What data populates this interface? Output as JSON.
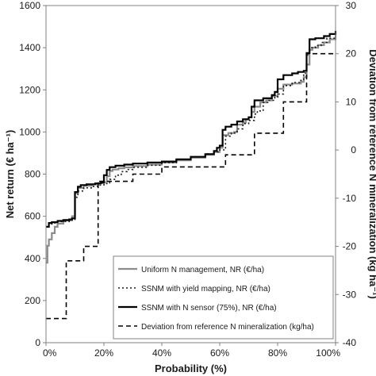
{
  "chart_data": {
    "type": "line",
    "xlabel": "Probability (%)",
    "ylabel": "Net return (€ ha⁻¹)",
    "y2label": "Deviation from reference N mineralization (kg ha⁻¹)",
    "xlim": [
      0,
      100
    ],
    "ylim": [
      0,
      1600
    ],
    "y2lim": [
      -40,
      30
    ],
    "x_ticks": [
      "0%",
      "20%",
      "40%",
      "60%",
      "80%",
      "100%"
    ],
    "y_ticks": [
      "0",
      "200",
      "400",
      "600",
      "800",
      "1000",
      "1200",
      "1400",
      "1600"
    ],
    "y2_ticks": [
      "-40",
      "-30",
      "-20",
      "-10",
      "0",
      "10",
      "20",
      "30"
    ],
    "grid": false,
    "legend_position": "bottom-right",
    "series": [
      {
        "name": "Uniform N management,   NR  (€/ha)",
        "color": "#8c8c8c",
        "dash": "",
        "axis": "left",
        "points": [
          [
            0,
            380
          ],
          [
            0.5,
            460
          ],
          [
            1,
            490
          ],
          [
            2,
            520
          ],
          [
            3,
            550
          ],
          [
            4,
            565
          ],
          [
            6,
            580
          ],
          [
            9,
            600
          ],
          [
            10,
            710
          ],
          [
            11,
            735
          ],
          [
            13,
            745
          ],
          [
            16,
            752
          ],
          [
            18,
            758
          ],
          [
            20,
            762
          ],
          [
            21,
            790
          ],
          [
            22,
            815
          ],
          [
            23,
            822
          ],
          [
            25,
            828
          ],
          [
            27,
            832
          ],
          [
            30,
            838
          ],
          [
            35,
            845
          ],
          [
            40,
            855
          ],
          [
            45,
            865
          ],
          [
            50,
            878
          ],
          [
            55,
            892
          ],
          [
            58,
            905
          ],
          [
            60,
            925
          ],
          [
            61,
            985
          ],
          [
            63,
            995
          ],
          [
            65,
            1000
          ],
          [
            66,
            1035
          ],
          [
            68,
            1045
          ],
          [
            69,
            1060
          ],
          [
            70,
            1070
          ],
          [
            71,
            1095
          ],
          [
            72,
            1120
          ],
          [
            74,
            1140
          ],
          [
            76,
            1150
          ],
          [
            78,
            1170
          ],
          [
            80,
            1205
          ],
          [
            82,
            1225
          ],
          [
            85,
            1230
          ],
          [
            88,
            1238
          ],
          [
            89,
            1260
          ],
          [
            90,
            1320
          ],
          [
            91,
            1390
          ],
          [
            92,
            1400
          ],
          [
            94,
            1412
          ],
          [
            96,
            1425
          ],
          [
            98,
            1440
          ],
          [
            100,
            1460
          ]
        ]
      },
      {
        "name": "SSNM  with  yield mapping,  NR  (€/ha)",
        "color": "#1a1a1a",
        "dash": "2,3",
        "axis": "left",
        "points": [
          [
            0,
            550
          ],
          [
            1,
            560
          ],
          [
            2,
            568
          ],
          [
            4,
            575
          ],
          [
            8,
            585
          ],
          [
            10,
            690
          ],
          [
            11,
            720
          ],
          [
            13,
            735
          ],
          [
            16,
            742
          ],
          [
            18,
            748
          ],
          [
            20,
            755
          ],
          [
            22,
            775
          ],
          [
            24,
            795
          ],
          [
            26,
            812
          ],
          [
            28,
            822
          ],
          [
            30,
            832
          ],
          [
            35,
            842
          ],
          [
            40,
            855
          ],
          [
            45,
            870
          ],
          [
            50,
            882
          ],
          [
            55,
            896
          ],
          [
            58,
            905
          ],
          [
            60,
            915
          ],
          [
            62,
            980
          ],
          [
            64,
            995
          ],
          [
            66,
            1015
          ],
          [
            68,
            1040
          ],
          [
            70,
            1055
          ],
          [
            72,
            1085
          ],
          [
            73,
            1100
          ],
          [
            75,
            1140
          ],
          [
            77,
            1150
          ],
          [
            79,
            1165
          ],
          [
            80,
            1180
          ],
          [
            82,
            1220
          ],
          [
            85,
            1235
          ],
          [
            88,
            1245
          ],
          [
            89,
            1280
          ],
          [
            90,
            1365
          ],
          [
            91,
            1400
          ],
          [
            93,
            1410
          ],
          [
            95,
            1425
          ],
          [
            97,
            1445
          ],
          [
            100,
            1455
          ]
        ]
      },
      {
        "name": "SSNM  with  N sensor  (75%),  NR  (€/ha)",
        "color": "#000000",
        "dash": "",
        "axis": "left",
        "points": [
          [
            0,
            550
          ],
          [
            1,
            568
          ],
          [
            2,
            572
          ],
          [
            4,
            578
          ],
          [
            6,
            582
          ],
          [
            8,
            585
          ],
          [
            9,
            590
          ],
          [
            10,
            715
          ],
          [
            11,
            740
          ],
          [
            12,
            748
          ],
          [
            14,
            752
          ],
          [
            17,
            756
          ],
          [
            19,
            760
          ],
          [
            20,
            795
          ],
          [
            21,
            820
          ],
          [
            22,
            833
          ],
          [
            24,
            840
          ],
          [
            27,
            845
          ],
          [
            30,
            850
          ],
          [
            35,
            855
          ],
          [
            40,
            860
          ],
          [
            45,
            870
          ],
          [
            50,
            882
          ],
          [
            55,
            895
          ],
          [
            58,
            910
          ],
          [
            59,
            925
          ],
          [
            60,
            935
          ],
          [
            61,
            1010
          ],
          [
            62,
            1025
          ],
          [
            64,
            1035
          ],
          [
            66,
            1050
          ],
          [
            68,
            1060
          ],
          [
            70,
            1070
          ],
          [
            71,
            1120
          ],
          [
            72,
            1150
          ],
          [
            75,
            1160
          ],
          [
            78,
            1175
          ],
          [
            79,
            1190
          ],
          [
            80,
            1250
          ],
          [
            82,
            1270
          ],
          [
            85,
            1278
          ],
          [
            87,
            1285
          ],
          [
            89,
            1290
          ],
          [
            90,
            1375
          ],
          [
            91,
            1440
          ],
          [
            93,
            1445
          ],
          [
            96,
            1455
          ],
          [
            98,
            1465
          ],
          [
            100,
            1480
          ]
        ]
      },
      {
        "name": "Deviation from reference N mineralization  (kg/ha)",
        "color": "#000000",
        "dash": "6,4",
        "axis": "right",
        "points": [
          [
            0,
            -35
          ],
          [
            7,
            -35
          ],
          [
            7,
            -23
          ],
          [
            13,
            -23
          ],
          [
            13,
            -20
          ],
          [
            18,
            -20
          ],
          [
            18,
            -6.5
          ],
          [
            30,
            -6.5
          ],
          [
            30,
            -5
          ],
          [
            40,
            -5
          ],
          [
            40,
            -3.5
          ],
          [
            62,
            -3.5
          ],
          [
            62,
            -1
          ],
          [
            72,
            -1
          ],
          [
            72,
            3.5
          ],
          [
            82,
            3.5
          ],
          [
            82,
            10
          ],
          [
            90,
            10
          ],
          [
            90,
            20
          ],
          [
            100,
            20
          ]
        ]
      }
    ]
  }
}
